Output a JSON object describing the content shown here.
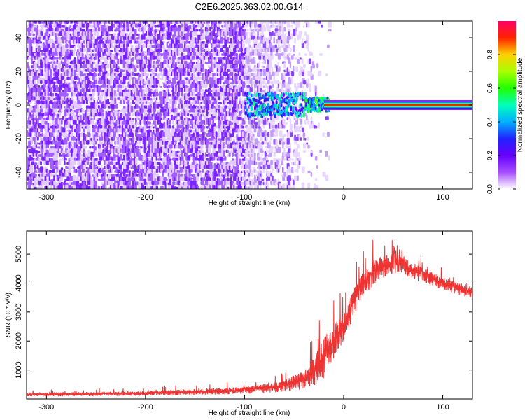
{
  "title": "C2E6.2025.363.02.00.G14",
  "chart_data": [
    {
      "type": "heatmap",
      "title": "",
      "xlabel": "Height of straight line (km)",
      "ylabel": "Frequency (Hz)",
      "xlim": [
        -320,
        130
      ],
      "ylim": [
        -50,
        50
      ],
      "xticks": [
        -300,
        -200,
        -100,
        0,
        100
      ],
      "yticks": [
        -40,
        -20,
        0,
        20,
        40
      ],
      "colorbar": {
        "label": "Normalized spectral amplitude",
        "range": [
          0,
          1
        ],
        "ticks": [
          0.0,
          0.2,
          0.4,
          0.6,
          0.8
        ],
        "colors": [
          "#ffffff",
          "#a64dff",
          "#6600ff",
          "#2222ff",
          "#00b0ff",
          "#00ffbb",
          "#22ff00",
          "#aaff00",
          "#ffd000",
          "#ff2200",
          "#ff0066"
        ]
      },
      "signal_band": {
        "frequency_hz": 0,
        "strong_from_km": -20,
        "noisy_from_km": -100,
        "noise_ends_km": -15
      }
    },
    {
      "type": "line",
      "title": "",
      "xlabel": "Height of straight line (km)",
      "ylabel": "SNR (10 * v/v)",
      "xlim": [
        -320,
        130
      ],
      "ylim": [
        0,
        5800
      ],
      "xticks": [
        -300,
        -200,
        -100,
        0,
        100
      ],
      "yticks": [
        1000,
        2000,
        3000,
        4000,
        5000
      ],
      "color": "#ee3333",
      "envelope": {
        "x": [
          -320,
          -200,
          -100,
          -60,
          -40,
          -30,
          -20,
          -10,
          0,
          10,
          20,
          30,
          40,
          50,
          60,
          80,
          100,
          130
        ],
        "mean": [
          150,
          200,
          300,
          450,
          700,
          1000,
          1500,
          2000,
          2500,
          3400,
          4000,
          4400,
          4600,
          4700,
          4600,
          4300,
          4000,
          3700
        ],
        "spread": [
          120,
          150,
          220,
          350,
          600,
          900,
          1300,
          1100,
          900,
          900,
          800,
          800,
          700,
          700,
          600,
          500,
          400,
          400
        ]
      }
    }
  ]
}
